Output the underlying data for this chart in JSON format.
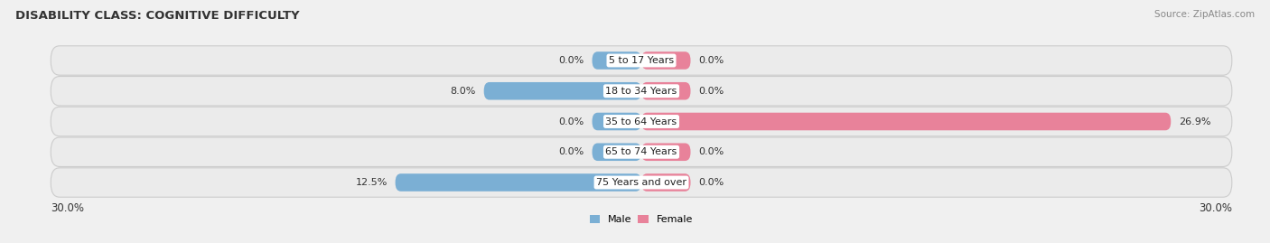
{
  "title": "DISABILITY CLASS: COGNITIVE DIFFICULTY",
  "source": "Source: ZipAtlas.com",
  "categories": [
    "5 to 17 Years",
    "18 to 34 Years",
    "35 to 64 Years",
    "65 to 74 Years",
    "75 Years and over"
  ],
  "male_values": [
    0.0,
    8.0,
    0.0,
    0.0,
    12.5
  ],
  "female_values": [
    0.0,
    0.0,
    26.9,
    0.0,
    0.0
  ],
  "male_color": "#7bafd4",
  "female_color": "#e8829a",
  "male_label": "Male",
  "female_label": "Female",
  "axis_min": -30.0,
  "axis_max": 30.0,
  "axis_label_left": "30.0%",
  "axis_label_right": "30.0%",
  "bar_height": 0.58,
  "stub_size": 2.5,
  "background_color": "#f0f0f0",
  "row_bg_color": "#e4e4e4",
  "title_fontsize": 9.5,
  "label_fontsize": 8.0,
  "value_fontsize": 8.0,
  "tick_fontsize": 8.5
}
